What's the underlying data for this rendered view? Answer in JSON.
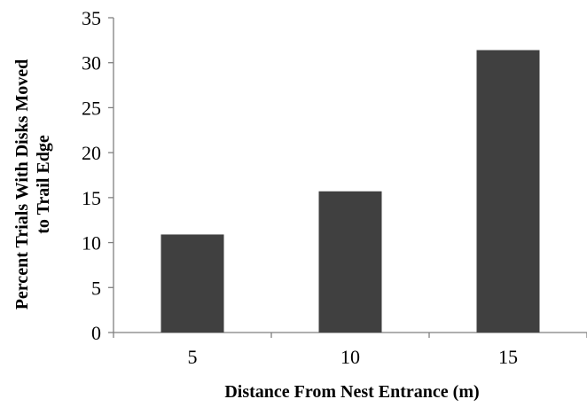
{
  "chart_data": {
    "type": "bar",
    "categories": [
      "5",
      "10",
      "15"
    ],
    "values": [
      10.9,
      15.7,
      31.4
    ],
    "xlabel": "Distance From Nest Entrance (m)",
    "ylabel_lines": [
      "Percent Trials With Disks Moved",
      "to Trail Edge"
    ],
    "ylim": [
      0,
      35
    ],
    "yticks": [
      "0",
      "5",
      "10",
      "15",
      "20",
      "25",
      "30",
      "35"
    ],
    "grid": false,
    "legend": "none",
    "bar_color": "#404040"
  }
}
